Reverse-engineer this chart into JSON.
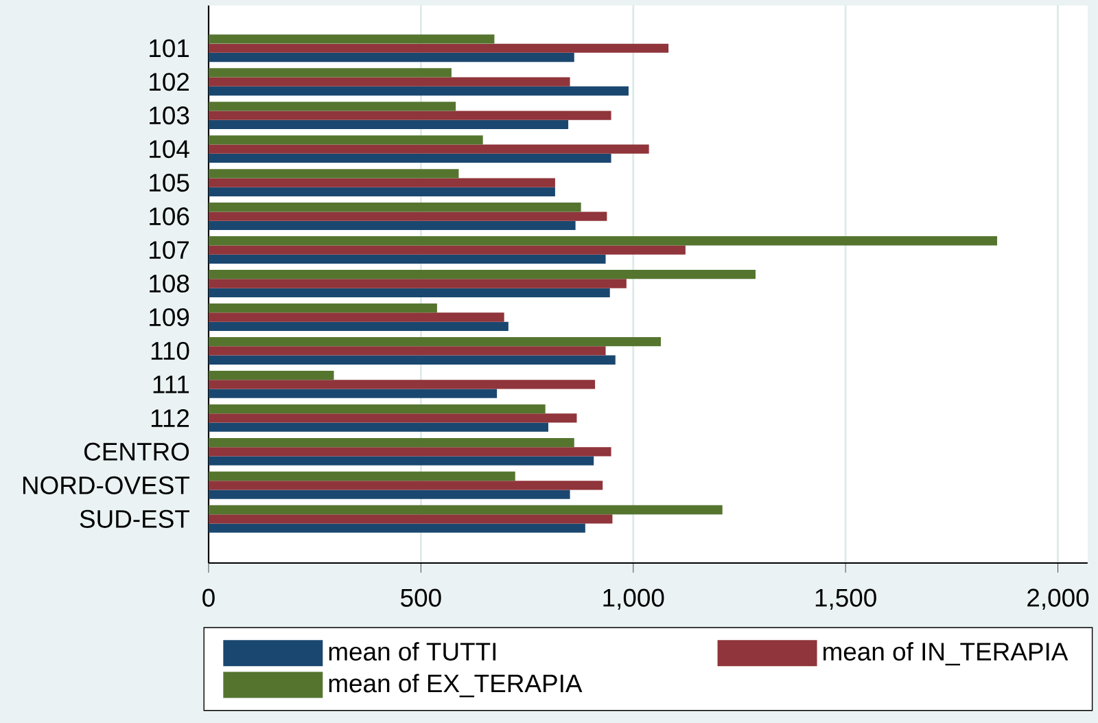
{
  "chart_data": {
    "type": "bar",
    "orientation": "horizontal",
    "categories": [
      "101",
      "102",
      "103",
      "104",
      "105",
      "106",
      "107",
      "108",
      "109",
      "110",
      "111",
      "112",
      "CENTRO",
      "NORD-OVEST",
      "SUD-EST"
    ],
    "series": [
      {
        "name": "mean of TUTTI",
        "color": "#1a476f",
        "values": [
          861,
          989,
          847,
          948,
          816,
          864,
          935,
          945,
          706,
          958,
          679,
          800,
          907,
          851,
          887
        ]
      },
      {
        "name": "mean of IN_TERAPIA",
        "color": "#90353b",
        "values": [
          1083,
          851,
          948,
          1037,
          816,
          938,
          1123,
          984,
          696,
          935,
          910,
          867,
          948,
          928,
          951
        ]
      },
      {
        "name": "mean of EX_TERAPIA",
        "color": "#55752f",
        "values": [
          673,
          572,
          582,
          646,
          589,
          877,
          1857,
          1288,
          538,
          1065,
          295,
          793,
          861,
          722,
          1210
        ]
      }
    ],
    "xlim": [
      0,
      2070
    ],
    "xticks": [
      {
        "value": 0,
        "label": "0"
      },
      {
        "value": 500,
        "label": "500"
      },
      {
        "value": 1000,
        "label": "1,000"
      },
      {
        "value": 1500,
        "label": "1,500"
      },
      {
        "value": 2000,
        "label": "2,000"
      }
    ],
    "grid": "x",
    "legend": "bottom"
  }
}
